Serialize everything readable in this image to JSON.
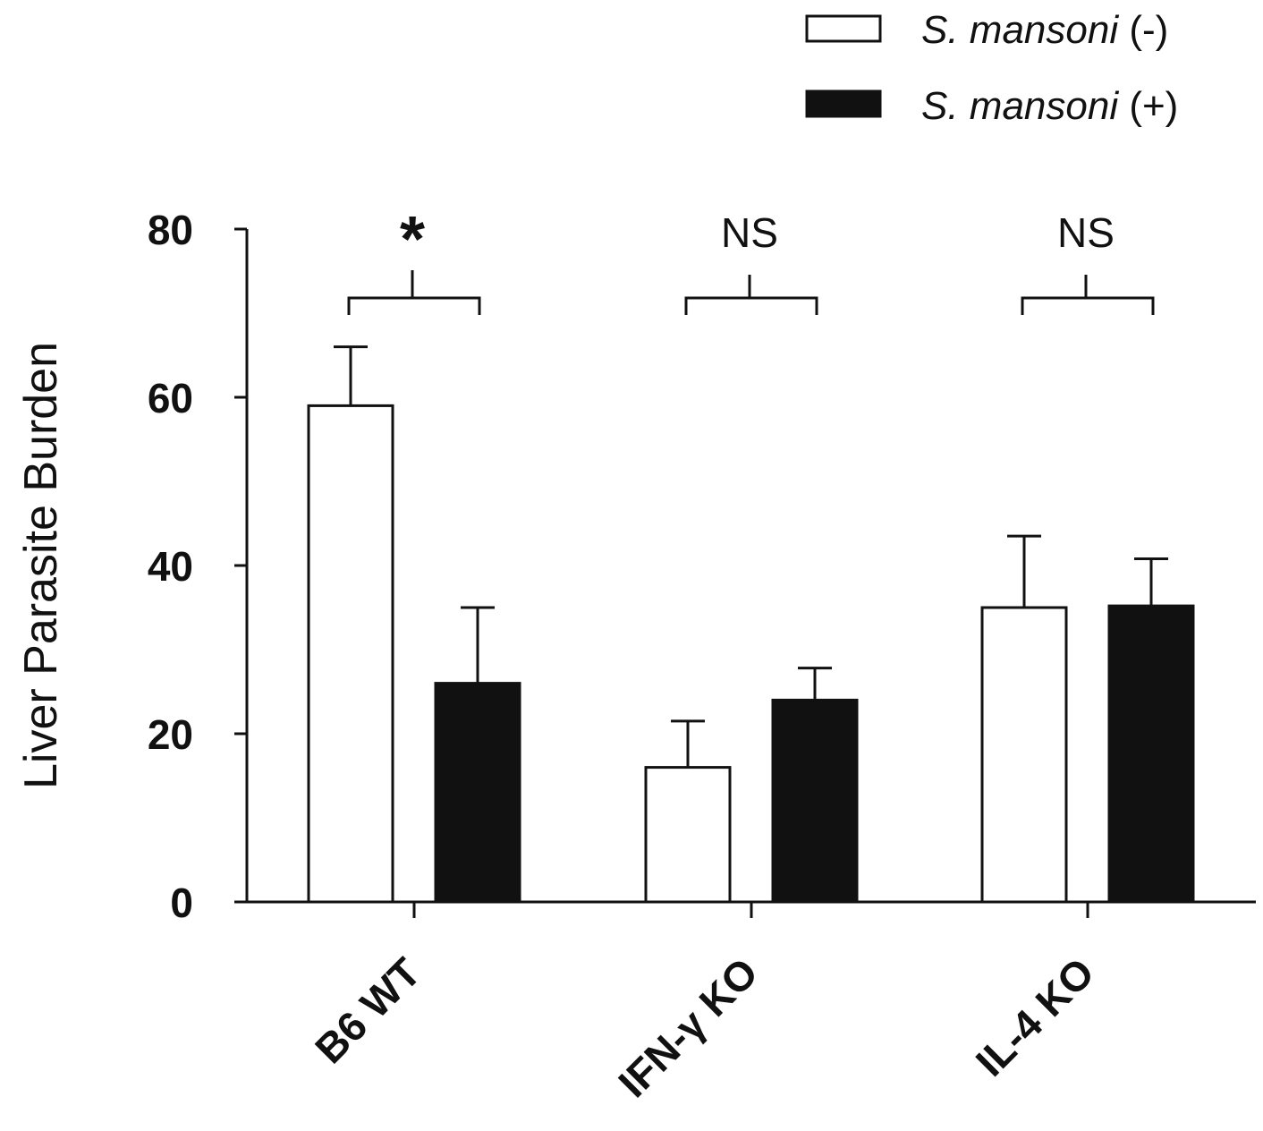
{
  "chart_data": {
    "type": "bar",
    "title": "",
    "xlabel": "",
    "ylabel": "Liver Parasite Burden",
    "ylim": [
      0,
      80
    ],
    "yticks": [
      "0",
      "20",
      "40",
      "60",
      "80"
    ],
    "categories": [
      "B6 WT",
      "IFN-γ KO",
      "IL-4 KO"
    ],
    "series": [
      {
        "name_prefix": "S. mansoni",
        "name_suffix": " (-)",
        "fill": "#ffffff",
        "values": [
          59,
          16,
          35
        ],
        "errors": [
          7,
          5.5,
          8.5
        ]
      },
      {
        "name_prefix": "S. mansoni",
        "name_suffix": " (+)",
        "fill": "#111111",
        "values": [
          26,
          24,
          35.2
        ],
        "errors": [
          9,
          3.8,
          5.6
        ]
      }
    ],
    "significance": [
      "*",
      "NS",
      "NS"
    ],
    "legend_position": "top-right",
    "grid": false
  }
}
